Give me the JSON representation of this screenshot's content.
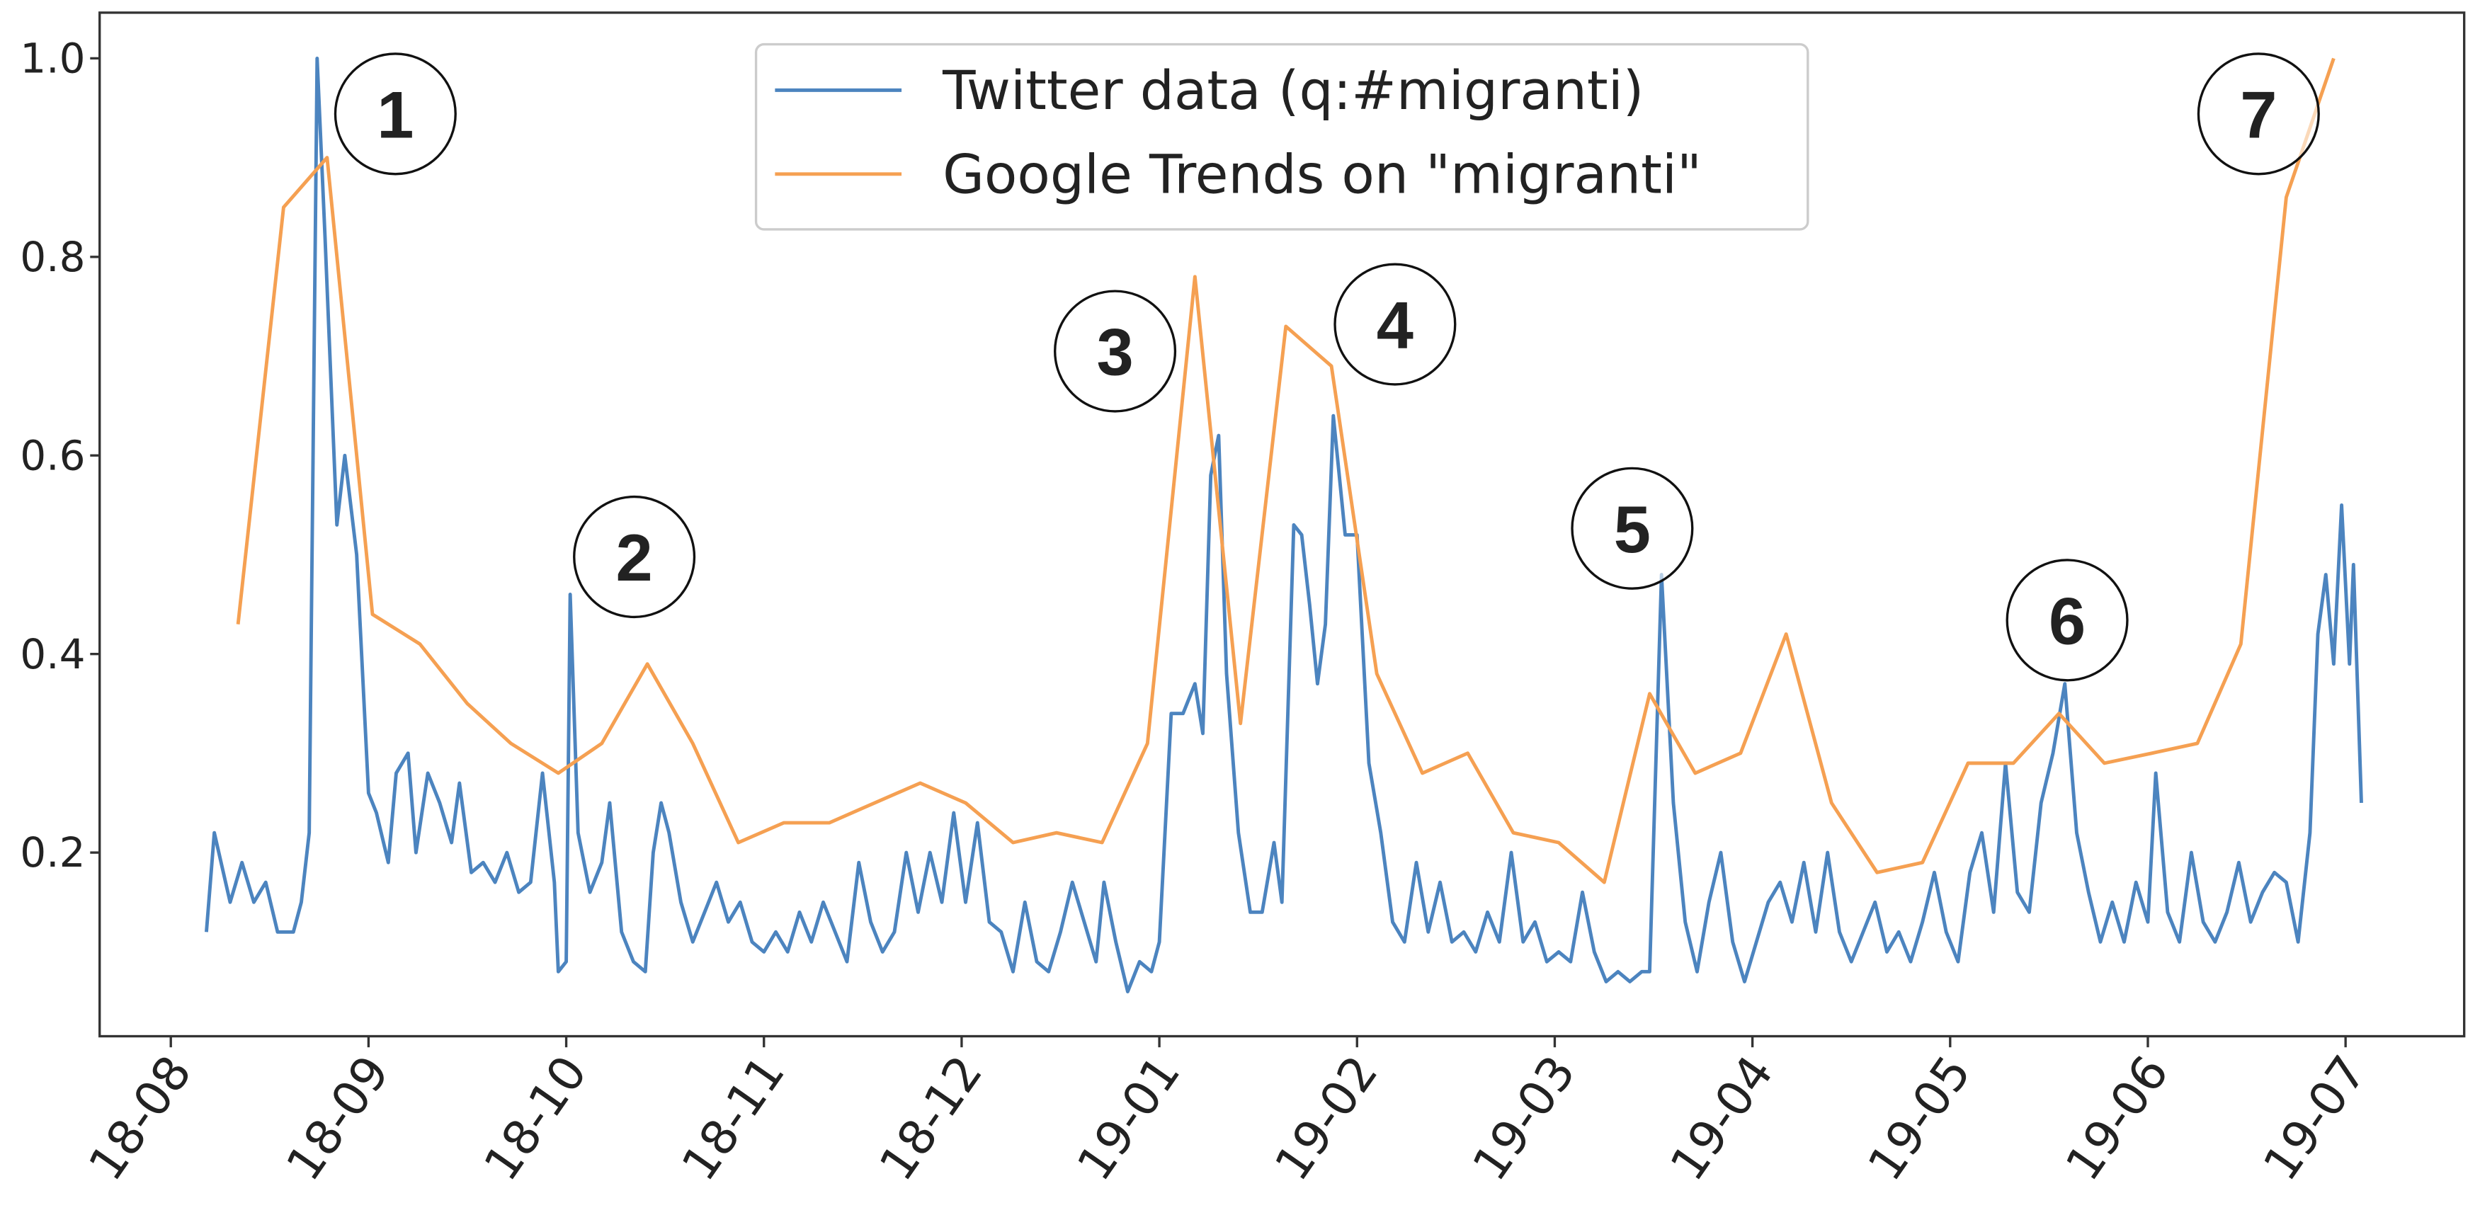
{
  "chart_data": {
    "type": "line",
    "xlim": [
      -0.36,
      11.6
    ],
    "ylim": [
      0.015,
      1.046
    ],
    "xticks": [
      {
        "value": 0,
        "label": "18-08"
      },
      {
        "value": 1,
        "label": "18-09"
      },
      {
        "value": 2,
        "label": "18-10"
      },
      {
        "value": 3,
        "label": "18-11"
      },
      {
        "value": 4,
        "label": "18-12"
      },
      {
        "value": 5,
        "label": "19-01"
      },
      {
        "value": 6,
        "label": "19-02"
      },
      {
        "value": 7,
        "label": "19-03"
      },
      {
        "value": 8,
        "label": "19-04"
      },
      {
        "value": 9,
        "label": "19-05"
      },
      {
        "value": 10,
        "label": "19-06"
      },
      {
        "value": 11,
        "label": "19-07"
      }
    ],
    "yticks": [
      0.2,
      0.4,
      0.6,
      0.8,
      {
        "value": 1,
        "label": "1.0"
      }
    ],
    "legend": "upper center",
    "annotations": [
      "1",
      "2",
      "3",
      "4",
      "5",
      "6",
      "7"
    ],
    "series": [
      {
        "name": "Twitter data (q:#migranti)",
        "color": "#4c84bf",
        "x": [
          0.18,
          0.22,
          0.3,
          0.36,
          0.42,
          0.48,
          0.54,
          0.62,
          0.66,
          0.7,
          0.74,
          0.78,
          0.84,
          0.88,
          0.94,
          1.0,
          1.04,
          1.1,
          1.14,
          1.2,
          1.24,
          1.3,
          1.36,
          1.42,
          1.46,
          1.52,
          1.58,
          1.64,
          1.7,
          1.76,
          1.82,
          1.88,
          1.94,
          1.96,
          2.0,
          2.02,
          2.06,
          2.12,
          2.18,
          2.22,
          2.28,
          2.34,
          2.4,
          2.44,
          2.48,
          2.52,
          2.58,
          2.64,
          2.7,
          2.76,
          2.82,
          2.88,
          2.94,
          3.0,
          3.06,
          3.12,
          3.18,
          3.24,
          3.3,
          3.36,
          3.42,
          3.48,
          3.54,
          3.6,
          3.66,
          3.72,
          3.78,
          3.84,
          3.9,
          3.96,
          4.02,
          4.08,
          4.14,
          4.2,
          4.26,
          4.32,
          4.38,
          4.44,
          4.5,
          4.56,
          4.62,
          4.68,
          4.72,
          4.78,
          4.84,
          4.9,
          4.96,
          5.0,
          5.06,
          5.12,
          5.18,
          5.22,
          5.26,
          5.3,
          5.34,
          5.4,
          5.46,
          5.52,
          5.58,
          5.62,
          5.68,
          5.72,
          5.76,
          5.8,
          5.84,
          5.88,
          5.94,
          6.0,
          6.06,
          6.12,
          6.18,
          6.24,
          6.3,
          6.36,
          6.42,
          6.48,
          6.54,
          6.6,
          6.66,
          6.72,
          6.78,
          6.84,
          6.9,
          6.96,
          7.02,
          7.08,
          7.14,
          7.2,
          7.26,
          7.32,
          7.38,
          7.44,
          7.48,
          7.54,
          7.6,
          7.66,
          7.72,
          7.78,
          7.84,
          7.9,
          7.96,
          8.02,
          8.08,
          8.14,
          8.2,
          8.26,
          8.32,
          8.38,
          8.44,
          8.5,
          8.56,
          8.62,
          8.68,
          8.74,
          8.8,
          8.86,
          8.92,
          8.98,
          9.04,
          9.1,
          9.16,
          9.22,
          9.28,
          9.34,
          9.4,
          9.46,
          9.52,
          9.58,
          9.64,
          9.7,
          9.76,
          9.82,
          9.88,
          9.94,
          10.0,
          10.04,
          10.1,
          10.16,
          10.22,
          10.28,
          10.34,
          10.4,
          10.46,
          10.52,
          10.58,
          10.64,
          10.7,
          10.76,
          10.82,
          10.86,
          10.9,
          10.94,
          10.98,
          11.02,
          11.04,
          11.08
        ],
        "values": [
          0.12,
          0.22,
          0.15,
          0.19,
          0.15,
          0.17,
          0.12,
          0.12,
          0.15,
          0.22,
          1.0,
          0.82,
          0.53,
          0.6,
          0.5,
          0.26,
          0.24,
          0.19,
          0.28,
          0.3,
          0.2,
          0.28,
          0.25,
          0.21,
          0.27,
          0.18,
          0.19,
          0.17,
          0.2,
          0.16,
          0.17,
          0.28,
          0.17,
          0.08,
          0.09,
          0.46,
          0.22,
          0.16,
          0.19,
          0.25,
          0.12,
          0.09,
          0.08,
          0.2,
          0.25,
          0.22,
          0.15,
          0.11,
          0.14,
          0.17,
          0.13,
          0.15,
          0.11,
          0.1,
          0.12,
          0.1,
          0.14,
          0.11,
          0.15,
          0.12,
          0.09,
          0.19,
          0.13,
          0.1,
          0.12,
          0.2,
          0.14,
          0.2,
          0.15,
          0.24,
          0.15,
          0.23,
          0.13,
          0.12,
          0.08,
          0.15,
          0.09,
          0.08,
          0.12,
          0.17,
          0.13,
          0.09,
          0.17,
          0.11,
          0.06,
          0.09,
          0.08,
          0.11,
          0.34,
          0.34,
          0.37,
          0.32,
          0.58,
          0.62,
          0.38,
          0.22,
          0.14,
          0.14,
          0.21,
          0.15,
          0.53,
          0.52,
          0.45,
          0.37,
          0.43,
          0.64,
          0.52,
          0.52,
          0.29,
          0.22,
          0.13,
          0.11,
          0.19,
          0.12,
          0.17,
          0.11,
          0.12,
          0.1,
          0.14,
          0.11,
          0.2,
          0.11,
          0.13,
          0.09,
          0.1,
          0.09,
          0.16,
          0.1,
          0.07,
          0.08,
          0.07,
          0.08,
          0.08,
          0.48,
          0.25,
          0.13,
          0.08,
          0.15,
          0.2,
          0.11,
          0.07,
          0.11,
          0.15,
          0.17,
          0.13,
          0.19,
          0.12,
          0.2,
          0.12,
          0.09,
          0.12,
          0.15,
          0.1,
          0.12,
          0.09,
          0.13,
          0.18,
          0.12,
          0.09,
          0.18,
          0.22,
          0.14,
          0.29,
          0.16,
          0.14,
          0.25,
          0.3,
          0.37,
          0.22,
          0.16,
          0.11,
          0.15,
          0.11,
          0.17,
          0.13,
          0.28,
          0.14,
          0.11,
          0.2,
          0.13,
          0.11,
          0.14,
          0.19,
          0.13,
          0.16,
          0.18,
          0.17,
          0.11,
          0.22,
          0.42,
          0.48,
          0.39,
          0.55,
          0.39,
          0.49,
          0.25
        ]
      },
      {
        "name": "Google Trends on \"migranti\"",
        "color": "#f5a052",
        "x": [
          0.34,
          0.57,
          0.79,
          1.02,
          1.26,
          1.5,
          1.72,
          1.96,
          2.18,
          2.41,
          2.64,
          2.87,
          3.1,
          3.33,
          3.56,
          3.79,
          4.02,
          4.26,
          4.48,
          4.71,
          4.94,
          5.18,
          5.41,
          5.64,
          5.87,
          6.1,
          6.33,
          6.56,
          6.79,
          7.02,
          7.25,
          7.48,
          7.71,
          7.94,
          8.17,
          8.4,
          8.63,
          8.86,
          9.09,
          9.32,
          9.55,
          9.78,
          10.02,
          10.25,
          10.47,
          10.7,
          10.94
        ],
        "values": [
          0.43,
          0.85,
          0.9,
          0.44,
          0.41,
          0.35,
          0.31,
          0.28,
          0.31,
          0.39,
          0.31,
          0.21,
          0.23,
          0.23,
          0.25,
          0.27,
          0.25,
          0.21,
          0.22,
          0.21,
          0.31,
          0.78,
          0.33,
          0.73,
          0.69,
          0.38,
          0.28,
          0.3,
          0.22,
          0.21,
          0.17,
          0.36,
          0.28,
          0.3,
          0.42,
          0.25,
          0.18,
          0.19,
          0.29,
          0.29,
          0.34,
          0.29,
          0.3,
          0.31,
          0.41,
          0.86,
          1.0
        ]
      }
    ]
  }
}
